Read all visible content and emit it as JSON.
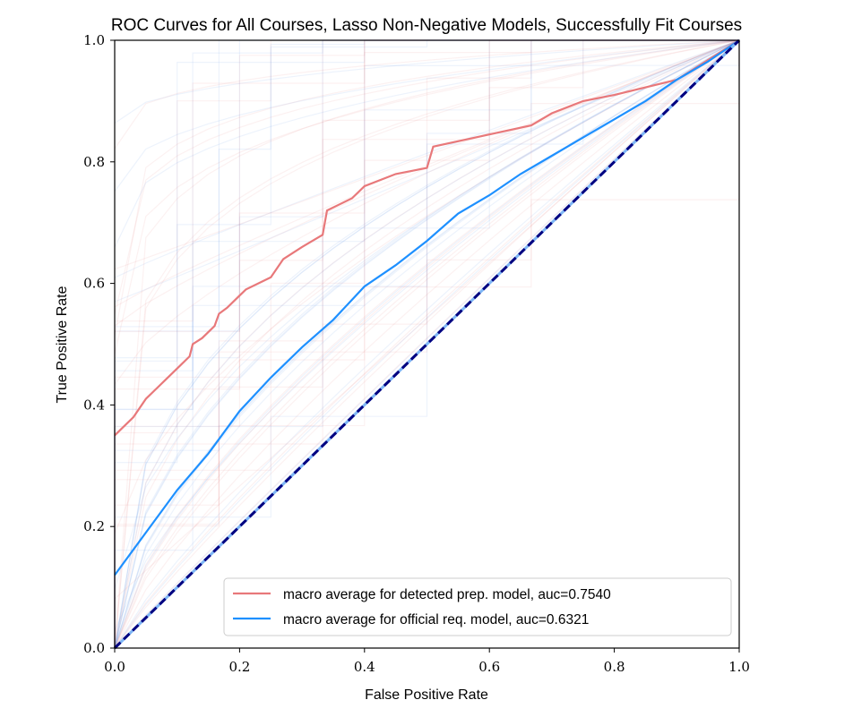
{
  "chart_data": {
    "type": "line",
    "title": "ROC Curves for All Courses, Lasso Non-Negative Models, Successfully Fit Courses",
    "xlabel": "False Positive Rate",
    "ylabel": "True Positive Rate",
    "xlim": [
      0,
      1
    ],
    "ylim": [
      0,
      1
    ],
    "x_ticks": [
      "0.0",
      "0.2",
      "0.4",
      "0.6",
      "0.8",
      "1.0"
    ],
    "y_ticks": [
      "0.0",
      "0.2",
      "0.4",
      "0.6",
      "0.8",
      "1.0"
    ],
    "legend_position": "lower-right",
    "series": [
      {
        "name": "macro average for detected prep. model, auc=0.7540",
        "color": "#e8787a",
        "x": [
          0,
          0.01,
          0.03,
          0.05,
          0.07,
          0.08,
          0.1,
          0.12,
          0.125,
          0.14,
          0.16,
          0.167,
          0.18,
          0.2,
          0.21,
          0.25,
          0.27,
          0.3,
          0.333,
          0.34,
          0.38,
          0.4,
          0.45,
          0.5,
          0.51,
          0.6,
          0.667,
          0.7,
          0.75,
          0.8,
          0.9,
          1.0
        ],
        "y": [
          0.35,
          0.36,
          0.38,
          0.41,
          0.43,
          0.44,
          0.46,
          0.48,
          0.5,
          0.51,
          0.53,
          0.55,
          0.56,
          0.58,
          0.59,
          0.61,
          0.64,
          0.66,
          0.68,
          0.72,
          0.74,
          0.76,
          0.78,
          0.79,
          0.825,
          0.845,
          0.86,
          0.88,
          0.9,
          0.91,
          0.935,
          1.0
        ]
      },
      {
        "name": "macro average for official req. model, auc=0.6321",
        "color": "#1e90ff",
        "x": [
          0,
          0.05,
          0.1,
          0.15,
          0.2,
          0.25,
          0.3,
          0.35,
          0.4,
          0.45,
          0.5,
          0.55,
          0.6,
          0.65,
          0.7,
          0.75,
          0.8,
          0.85,
          0.9,
          0.95,
          1.0
        ],
        "y": [
          0.12,
          0.19,
          0.26,
          0.32,
          0.39,
          0.445,
          0.495,
          0.54,
          0.595,
          0.63,
          0.67,
          0.715,
          0.745,
          0.78,
          0.81,
          0.84,
          0.87,
          0.9,
          0.935,
          0.965,
          1.0
        ]
      },
      {
        "name": "",
        "color": "#000080",
        "style": "dashed",
        "x": [
          0,
          1
        ],
        "y": [
          0,
          1
        ]
      }
    ]
  }
}
